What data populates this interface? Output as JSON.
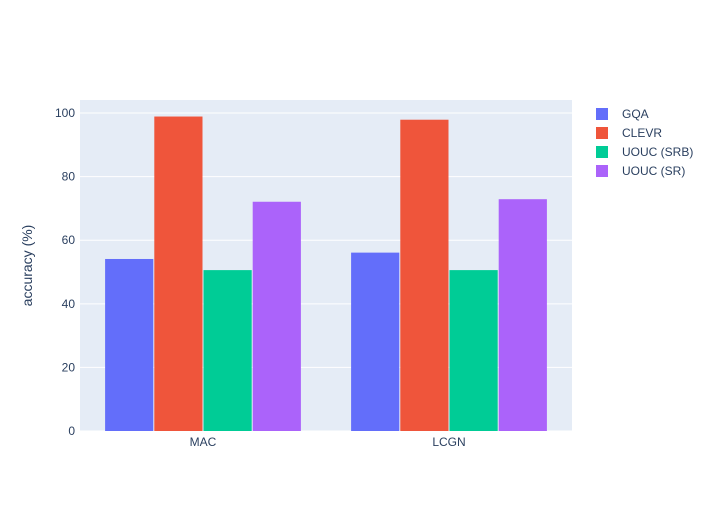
{
  "chart_data": {
    "type": "bar",
    "categories": [
      "MAC",
      "LCGN"
    ],
    "series": [
      {
        "name": "GQA",
        "values": [
          54.1,
          56.1
        ],
        "color": "#636efa"
      },
      {
        "name": "CLEVR",
        "values": [
          98.9,
          97.9
        ],
        "color": "#ef553b"
      },
      {
        "name": "UOUC (SRB)",
        "values": [
          50.6,
          50.6
        ],
        "color": "#00cc96"
      },
      {
        "name": "UOUC (SR)",
        "values": [
          72.1,
          72.9
        ],
        "color": "#ab63fa"
      }
    ],
    "title": "",
    "xlabel": "",
    "ylabel": "accuracy (%)",
    "ylim": [
      0,
      104.1
    ],
    "yticks": [
      0,
      20,
      40,
      60,
      80,
      100
    ],
    "grid": true,
    "legend_position": "right",
    "plot_background": "#e5ecf6"
  }
}
